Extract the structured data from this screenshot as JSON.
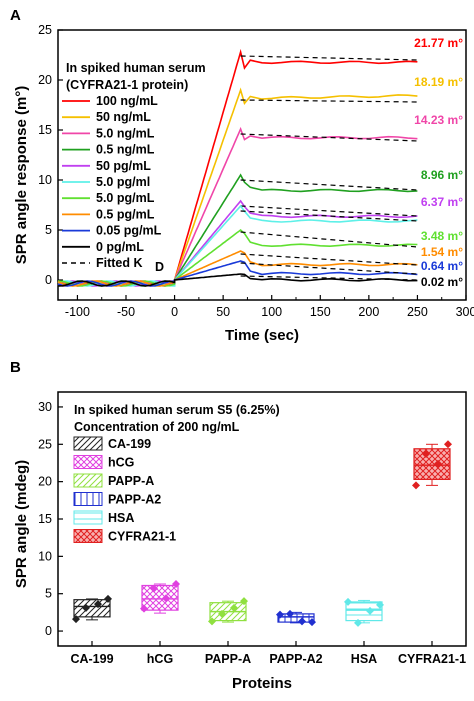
{
  "colors": {
    "100 ng/mL": "#ff0000",
    "50 ng/mL": "#f5c000",
    "5.0 ng/mL": "#f046a8",
    "0.5 ng/mL": "#20a020",
    "50 pg/mL": "#c040f0",
    "5.0 pg/ml": "#5ef0e8",
    "5.0 pg/mL": "#60e030",
    "0.5 pg/mL": "#ff8c00",
    "0.05 pg/mL": "#1a3ad8",
    "0 pg/mL": "#000000",
    "Fitted": "#000000"
  },
  "chart_data": [
    {
      "panel": "A",
      "type": "line",
      "xlabel": "Time (sec)",
      "ylabel": "SPR angle response (m°)",
      "xlim": [
        -120,
        300
      ],
      "ylim": [
        -2,
        25
      ],
      "xticks": [
        -100,
        -50,
        0,
        50,
        100,
        150,
        200,
        250,
        300
      ],
      "yticks": [
        0,
        5,
        10,
        15,
        20,
        25
      ],
      "legend_title": [
        "In spiked human serum",
        "(CYFRA21-1 protein)"
      ],
      "legend_placement": "top-left",
      "fitted_label": "Fitted K",
      "fitted_label_sub": "D",
      "series": [
        {
          "name": "100 ng/mL",
          "peak": 22.8,
          "plateau": 21.77,
          "end_label": "21.77 m°",
          "fit_start": 22.4,
          "fit_end": 22.0
        },
        {
          "name": "50 ng/mL",
          "peak": 19.0,
          "plateau": 18.19,
          "end_label": "18.19 m°",
          "fit_start": 18.0,
          "fit_end": 17.8
        },
        {
          "name": "5.0 ng/mL",
          "peak": 15.1,
          "plateau": 14.23,
          "end_label": "14.23 m°",
          "fit_start": 14.6,
          "fit_end": 13.9
        },
        {
          "name": "0.5 ng/mL",
          "peak": 10.5,
          "plateau": 8.96,
          "end_label": "8.96 m°",
          "fit_start": 10.0,
          "fit_end": 9.0
        },
        {
          "name": "50 pg/mL",
          "peak": 7.9,
          "plateau": 6.37,
          "end_label": "6.37 m°",
          "fit_start": 7.4,
          "fit_end": 6.4
        },
        {
          "name": "5.0 pg/ml",
          "peak": 7.4,
          "plateau": 5.9,
          "end_label": "",
          "fit_start": 6.9,
          "fit_end": 5.9
        },
        {
          "name": "5.0 pg/mL",
          "peak": 5.0,
          "plateau": 3.48,
          "end_label": "3.48 m°",
          "fit_start": 4.8,
          "fit_end": 3.3
        },
        {
          "name": "0.5 pg/mL",
          "peak": 2.9,
          "plateau": 1.54,
          "end_label": "1.54 m°",
          "fit_start": 2.6,
          "fit_end": 1.5
        },
        {
          "name": "0.05 pg/mL",
          "peak": 1.9,
          "plateau": 0.64,
          "end_label": "0.64 m°",
          "fit_start": 1.7,
          "fit_end": 0.6
        },
        {
          "name": "0 pg/mL",
          "peak": 0.6,
          "plateau": 0.02,
          "end_label": "0.02 m°",
          "fit_start": 0.4,
          "fit_end": 0.0
        }
      ]
    },
    {
      "panel": "B",
      "type": "box",
      "xlabel": "Proteins",
      "ylabel": "SPR angle (mdeg)",
      "ylim": [
        -2,
        32
      ],
      "yticks": [
        0,
        5,
        10,
        15,
        20,
        25,
        30
      ],
      "legend_title": [
        "In spiked human serum S5 (6.25%)",
        "Concentration of 200 ng/mL"
      ],
      "legend_placement": "top-left",
      "categories": [
        "CA-199",
        "hCG",
        "PAPP-A",
        "PAPP-A2",
        "HSA",
        "CYFRA21-1"
      ],
      "box_colors": [
        "#222222",
        "#e040e0",
        "#90e040",
        "#2030d0",
        "#60e8e8",
        "#e02020"
      ],
      "patterns": [
        "diag",
        "cross",
        "diag",
        "vert",
        "horiz",
        "cross"
      ],
      "boxes": [
        {
          "q1": 1.9,
          "median": 3.3,
          "q3": 4.2,
          "min": 1.5,
          "max": 4.3,
          "points": [
            1.6,
            3.1,
            3.6,
            4.3
          ]
        },
        {
          "q1": 2.8,
          "median": 4.3,
          "q3": 6.1,
          "min": 2.4,
          "max": 6.3,
          "points": [
            3.0,
            5.7,
            4.4,
            6.3
          ]
        },
        {
          "q1": 1.4,
          "median": 2.6,
          "q3": 3.8,
          "min": 1.2,
          "max": 4.0,
          "points": [
            1.3,
            2.3,
            3.1,
            4.0
          ]
        },
        {
          "q1": 1.2,
          "median": 1.9,
          "q3": 2.3,
          "min": 1.1,
          "max": 2.5,
          "points": [
            2.2,
            2.3,
            1.3,
            1.2
          ]
        },
        {
          "q1": 1.4,
          "median": 2.8,
          "q3": 3.9,
          "min": 1.1,
          "max": 4.1,
          "points": [
            3.9,
            1.1,
            2.7,
            3.5
          ]
        },
        {
          "q1": 20.3,
          "median": 22.2,
          "q3": 24.4,
          "min": 19.5,
          "max": 25.0,
          "points": [
            19.5,
            23.7,
            22.4,
            25.0
          ]
        }
      ]
    }
  ]
}
